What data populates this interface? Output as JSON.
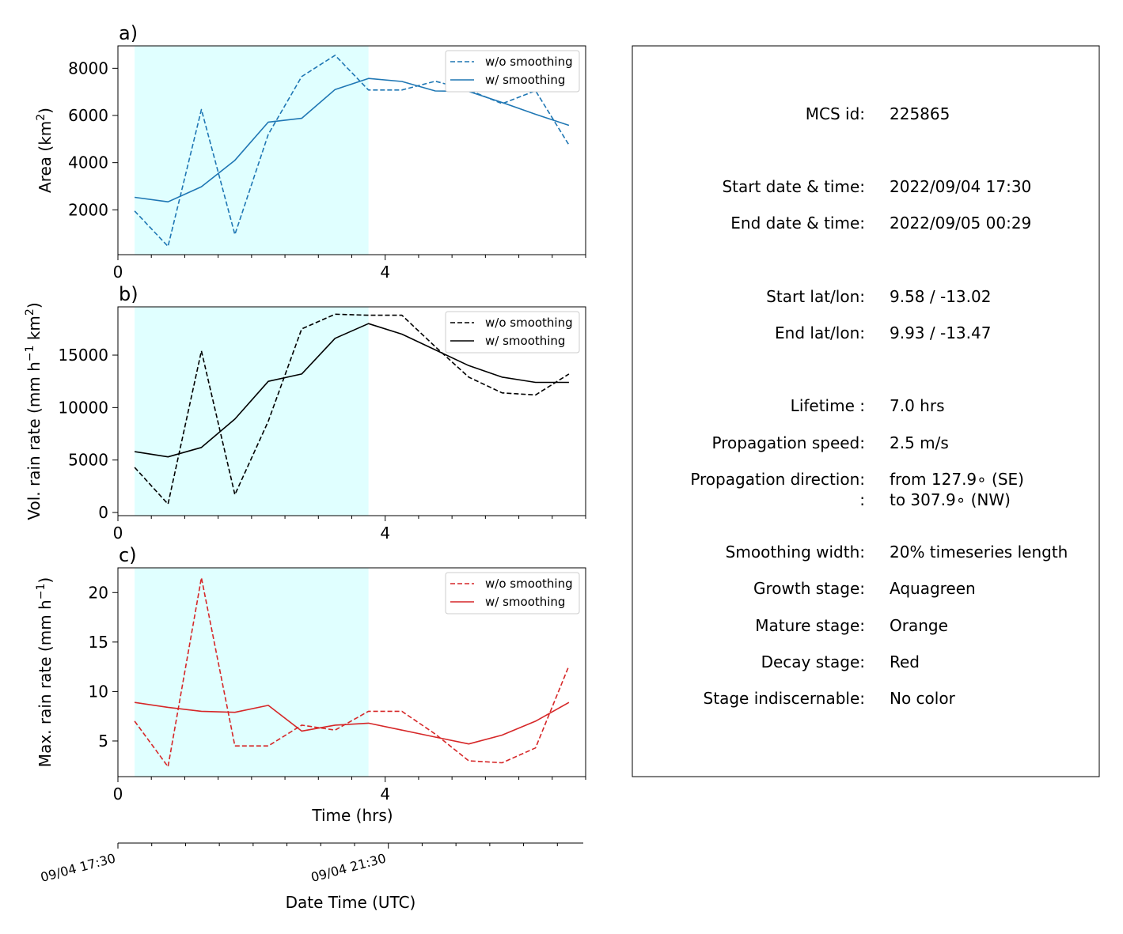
{
  "chart_data": [
    {
      "type": "line",
      "panel_label": "a)",
      "ylabel_main": "Area  (km",
      "ylabel_sup": "2",
      "ylabel_end": ")",
      "xlim": [
        0,
        7
      ],
      "ylim": [
        100,
        8950
      ],
      "yticks": [
        2000,
        4000,
        6000,
        8000
      ],
      "xticks": [
        0,
        4
      ],
      "stage_shading": {
        "from": 0.25,
        "to": 3.75,
        "color": "#e0ffff"
      },
      "color": "#1f77b4",
      "legend": "top-right",
      "x": [
        0.25,
        0.75,
        1.25,
        1.75,
        2.25,
        2.75,
        3.25,
        3.75,
        4.25,
        4.75,
        5.25,
        5.75,
        6.25,
        6.75
      ],
      "series": [
        {
          "name": "w/o smoothing",
          "style": "dashed",
          "values": [
            1950,
            450,
            6250,
            950,
            5200,
            7650,
            8550,
            7080,
            7080,
            7450,
            7080,
            6500,
            7050,
            4750
          ]
        },
        {
          "name": "w/ smoothing",
          "style": "solid",
          "values": [
            2530,
            2340,
            2980,
            4100,
            5720,
            5880,
            7100,
            7570,
            7440,
            7040,
            7020,
            6550,
            6050,
            5580
          ]
        }
      ]
    },
    {
      "type": "line",
      "panel_label": "b)",
      "ylabel_main": "Vol. rain rate (mm h",
      "ylabel_sup": "−1",
      "ylabel_mid": " km",
      "ylabel_sup2": "2",
      "ylabel_end": ")",
      "xlim": [
        0,
        7
      ],
      "ylim": [
        -300,
        19600
      ],
      "yticks": [
        0,
        5000,
        10000,
        15000
      ],
      "xticks": [
        0,
        4
      ],
      "stage_shading": {
        "from": 0.25,
        "to": 3.75,
        "color": "#e0ffff"
      },
      "color": "#000000",
      "legend": "top-right",
      "x": [
        0.25,
        0.75,
        1.25,
        1.75,
        2.25,
        2.75,
        3.25,
        3.75,
        4.25,
        4.75,
        5.25,
        5.75,
        6.25,
        6.75
      ],
      "series": [
        {
          "name": "w/o smoothing",
          "style": "dashed",
          "values": [
            4300,
            800,
            15400,
            1700,
            8700,
            17500,
            18900,
            18800,
            18800,
            15800,
            12900,
            11400,
            11200,
            13200
          ]
        },
        {
          "name": "w/ smoothing",
          "style": "solid",
          "values": [
            5800,
            5300,
            6200,
            8900,
            12500,
            13200,
            16600,
            18000,
            17000,
            15500,
            14000,
            12900,
            12400,
            12400
          ]
        }
      ]
    },
    {
      "type": "line",
      "panel_label": "c)",
      "ylabel_main": "Max. rain rate  (mm h",
      "ylabel_sup": "−1",
      "ylabel_end": ")",
      "xlabel": "Time (hrs)",
      "xlim": [
        0,
        7
      ],
      "ylim": [
        1.4,
        22.5
      ],
      "yticks": [
        5,
        10,
        15,
        20
      ],
      "xticks": [
        0,
        4
      ],
      "stage_shading": {
        "from": 0.25,
        "to": 3.75,
        "color": "#e0ffff"
      },
      "color": "#d62728",
      "legend": "top-right",
      "x": [
        0.25,
        0.75,
        1.25,
        1.75,
        2.25,
        2.75,
        3.25,
        3.75,
        4.25,
        4.75,
        5.25,
        5.75,
        6.25,
        6.75
      ],
      "series": [
        {
          "name": "w/o smoothing",
          "style": "dashed",
          "values": [
            7.0,
            2.4,
            21.5,
            4.5,
            4.5,
            6.6,
            6.1,
            8.0,
            8.0,
            5.7,
            3.0,
            2.8,
            4.3,
            12.6
          ]
        },
        {
          "name": "w/ smoothing",
          "style": "solid",
          "values": [
            8.9,
            8.4,
            8.0,
            7.9,
            8.6,
            6.0,
            6.6,
            6.8,
            6.1,
            5.4,
            4.7,
            5.6,
            7.0,
            8.9
          ]
        }
      ]
    }
  ],
  "datetime_axis": {
    "label": "Date Time (UTC)",
    "hours_span": 7,
    "ticks": [
      {
        "hour": 0,
        "label": "09/04 17:30"
      },
      {
        "hour": 4,
        "label": "09/04 21:30"
      }
    ]
  },
  "info_panel": {
    "rows": [
      {
        "label": "MCS id:",
        "value": "225865"
      },
      {
        "label": "Start date & time:",
        "value": "2022/09/04 17:30"
      },
      {
        "label": "End date & time:",
        "value": "2022/09/05 00:29"
      },
      {
        "label": "Start lat/lon:",
        "value": "9.58 / -13.02"
      },
      {
        "label": "End lat/lon:",
        "value": "9.93 / -13.47"
      },
      {
        "label": "Lifetime :",
        "value": "7.0 hrs"
      },
      {
        "label": "Propagation speed:",
        "value": "2.5 m/s"
      },
      {
        "label": "Propagation direction:",
        "value": "from 127.9∘ (SE)"
      },
      {
        "label": ":",
        "value": "to   307.9∘ (NW)"
      },
      {
        "label": "Smoothing width:",
        "value": "20% timeseries length"
      },
      {
        "label": "Growth stage:",
        "value": "Aquagreen"
      },
      {
        "label": "Mature stage:",
        "value": "Orange"
      },
      {
        "label": "Decay stage:",
        "value": "Red"
      },
      {
        "label": "Stage indiscernable:",
        "value": "No color"
      }
    ]
  }
}
